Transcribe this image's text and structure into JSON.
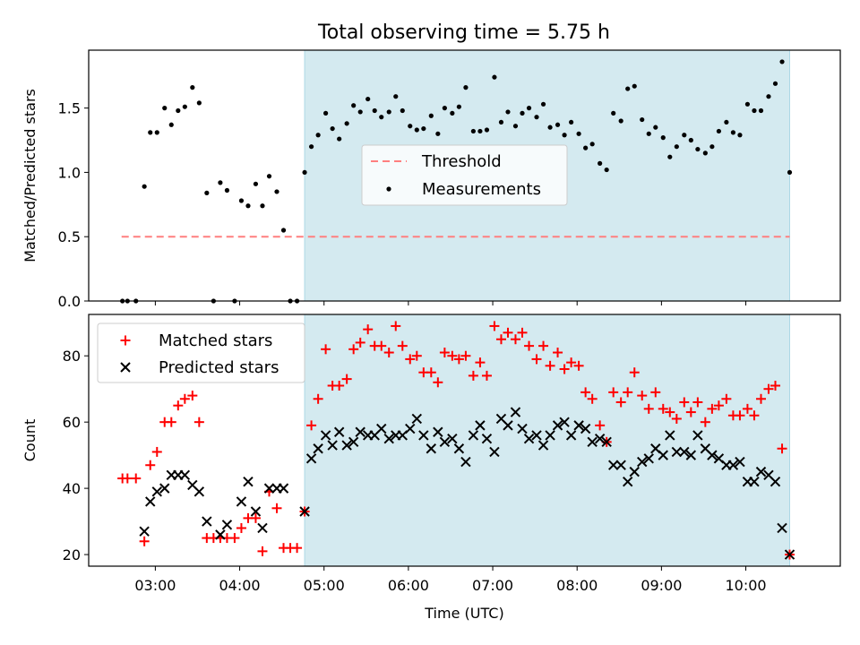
{
  "figure_title": "Total observing time = 5.75 h",
  "colors": {
    "observing_window": "#d4eaf0",
    "observing_edge": "#add8e6",
    "threshold": "#ff7f7f",
    "matched": "#ff0000",
    "predicted": "#000000"
  },
  "chart_data": [
    {
      "type": "scatter",
      "title": "Total observing time = 5.75 h",
      "xlabel": "",
      "ylabel": "Matched/Predicted stars",
      "x_unit": "hours (UTC)",
      "xlim": [
        2.21,
        11.12
      ],
      "ylim": [
        0.0,
        1.95
      ],
      "yticks": [
        0.0,
        0.5,
        1.0,
        1.5
      ],
      "ytick_labels": [
        "0.0",
        "0.5",
        "1.0",
        "1.5"
      ],
      "observing_window": [
        4.77,
        10.52
      ],
      "legend": {
        "placement": "center",
        "entries": [
          "Threshold",
          "Measurements"
        ]
      },
      "series": [
        {
          "name": "Threshold",
          "kind": "dashed-line",
          "x": [
            2.6,
            10.52
          ],
          "y": [
            0.5,
            0.5
          ]
        },
        {
          "name": "Measurements",
          "kind": "points",
          "x": [
            2.61,
            2.67,
            2.77,
            2.87,
            2.94,
            3.02,
            3.11,
            3.19,
            3.27,
            3.35,
            3.44,
            3.52,
            3.61,
            3.69,
            3.77,
            3.85,
            3.94,
            4.02,
            4.1,
            4.19,
            4.27,
            4.35,
            4.44,
            4.52,
            4.6,
            4.68,
            4.77,
            4.85,
            4.93,
            5.02,
            5.1,
            5.18,
            5.27,
            5.35,
            5.43,
            5.52,
            5.6,
            5.68,
            5.77,
            5.85,
            5.93,
            6.02,
            6.1,
            6.18,
            6.27,
            6.35,
            6.43,
            6.52,
            6.6,
            6.68,
            6.77,
            6.85,
            6.93,
            7.02,
            7.1,
            7.18,
            7.27,
            7.35,
            7.43,
            7.52,
            7.6,
            7.68,
            7.77,
            7.85,
            7.93,
            8.02,
            8.1,
            8.18,
            8.27,
            8.35,
            8.43,
            8.52,
            8.6,
            8.68,
            8.77,
            8.85,
            8.93,
            9.02,
            9.1,
            9.18,
            9.27,
            9.35,
            9.43,
            9.52,
            9.6,
            9.68,
            9.77,
            9.85,
            9.93,
            10.02,
            10.1,
            10.18,
            10.27,
            10.35,
            10.43,
            10.52
          ],
          "y": [
            0.0,
            0.0,
            0.0,
            0.89,
            1.31,
            1.31,
            1.5,
            1.37,
            1.48,
            1.51,
            1.66,
            1.54,
            0.84,
            0.0,
            0.92,
            0.86,
            0.0,
            0.78,
            0.74,
            0.91,
            0.74,
            0.97,
            0.85,
            0.55,
            0.0,
            0.0,
            1.0,
            1.2,
            1.29,
            1.46,
            1.34,
            1.26,
            1.38,
            1.52,
            1.47,
            1.57,
            1.48,
            1.43,
            1.47,
            1.59,
            1.48,
            1.36,
            1.33,
            1.34,
            1.44,
            1.3,
            1.5,
            1.46,
            1.51,
            1.66,
            1.32,
            1.32,
            1.33,
            1.74,
            1.39,
            1.47,
            1.36,
            1.46,
            1.5,
            1.43,
            1.53,
            1.35,
            1.37,
            1.29,
            1.39,
            1.3,
            1.19,
            1.22,
            1.07,
            1.02,
            1.46,
            1.4,
            1.65,
            1.67,
            1.41,
            1.3,
            1.35,
            1.27,
            1.12,
            1.2,
            1.29,
            1.25,
            1.18,
            1.15,
            1.2,
            1.32,
            1.39,
            1.31,
            1.29,
            1.53,
            1.48,
            1.48,
            1.59,
            1.69,
            1.86,
            1.0
          ]
        }
      ]
    },
    {
      "type": "scatter",
      "title": "",
      "xlabel": "Time (UTC)",
      "ylabel": "Count",
      "x_unit": "hours (UTC)",
      "xlim": [
        2.21,
        11.12
      ],
      "ylim": [
        16.5,
        92.5
      ],
      "xticks": [
        3,
        4,
        5,
        6,
        7,
        8,
        9,
        10
      ],
      "xtick_labels": [
        "03:00",
        "04:00",
        "05:00",
        "06:00",
        "07:00",
        "08:00",
        "09:00",
        "10:00"
      ],
      "yticks": [
        20,
        40,
        60,
        80
      ],
      "ytick_labels": [
        "20",
        "40",
        "60",
        "80"
      ],
      "observing_window": [
        4.77,
        10.52
      ],
      "legend": {
        "placement": "upper left",
        "entries": [
          "Matched stars",
          "Predicted stars"
        ]
      },
      "series": [
        {
          "name": "Matched stars",
          "marker": "plus",
          "x": [
            2.61,
            2.67,
            2.77,
            2.87,
            2.94,
            3.02,
            3.11,
            3.19,
            3.27,
            3.35,
            3.44,
            3.52,
            3.61,
            3.69,
            3.77,
            3.85,
            3.94,
            4.02,
            4.1,
            4.19,
            4.27,
            4.35,
            4.44,
            4.52,
            4.6,
            4.68,
            4.77,
            4.85,
            4.93,
            5.02,
            5.1,
            5.18,
            5.27,
            5.35,
            5.43,
            5.52,
            5.6,
            5.68,
            5.77,
            5.85,
            5.93,
            6.02,
            6.1,
            6.18,
            6.27,
            6.35,
            6.43,
            6.52,
            6.6,
            6.68,
            6.77,
            6.85,
            6.93,
            7.02,
            7.1,
            7.18,
            7.27,
            7.35,
            7.43,
            7.52,
            7.6,
            7.68,
            7.77,
            7.85,
            7.93,
            8.02,
            8.1,
            8.18,
            8.27,
            8.35,
            8.43,
            8.52,
            8.6,
            8.68,
            8.77,
            8.85,
            8.93,
            9.02,
            9.1,
            9.18,
            9.27,
            9.35,
            9.43,
            9.52,
            9.6,
            9.68,
            9.77,
            9.85,
            9.93,
            10.02,
            10.1,
            10.18,
            10.27,
            10.35,
            10.43,
            10.52
          ],
          "y": [
            43,
            43,
            43,
            24,
            47,
            51,
            60,
            60,
            65,
            67,
            68,
            60,
            25,
            25,
            25,
            25,
            25,
            28,
            31,
            31,
            21,
            39,
            34,
            22,
            22,
            22,
            33,
            59,
            67,
            82,
            71,
            71,
            73,
            82,
            84,
            88,
            83,
            83,
            81,
            89,
            83,
            79,
            80,
            75,
            75,
            72,
            81,
            80,
            79,
            80,
            74,
            78,
            74,
            89,
            85,
            87,
            85,
            87,
            83,
            79,
            83,
            77,
            81,
            76,
            78,
            77,
            69,
            67,
            59,
            54,
            69,
            66,
            69,
            75,
            68,
            64,
            69,
            64,
            63,
            61,
            66,
            63,
            66,
            60,
            64,
            65,
            67,
            62,
            62,
            64,
            62,
            67,
            70,
            71,
            52,
            20
          ]
        },
        {
          "name": "Predicted stars",
          "marker": "x",
          "x": [
            2.61,
            2.67,
            2.77,
            2.87,
            2.94,
            3.02,
            3.11,
            3.19,
            3.27,
            3.35,
            3.44,
            3.52,
            3.61,
            3.69,
            3.77,
            3.85,
            3.94,
            4.02,
            4.1,
            4.19,
            4.27,
            4.35,
            4.44,
            4.52,
            4.6,
            4.68,
            4.77,
            4.85,
            4.93,
            5.02,
            5.1,
            5.18,
            5.27,
            5.35,
            5.43,
            5.52,
            5.6,
            5.68,
            5.77,
            5.85,
            5.93,
            6.02,
            6.1,
            6.18,
            6.27,
            6.35,
            6.43,
            6.52,
            6.6,
            6.68,
            6.77,
            6.85,
            6.93,
            7.02,
            7.1,
            7.18,
            7.27,
            7.35,
            7.43,
            7.52,
            7.6,
            7.68,
            7.77,
            7.85,
            7.93,
            8.02,
            8.1,
            8.18,
            8.27,
            8.35,
            8.43,
            8.52,
            8.6,
            8.68,
            8.77,
            8.85,
            8.93,
            9.02,
            9.1,
            9.18,
            9.27,
            9.35,
            9.43,
            9.52,
            9.6,
            9.68,
            9.77,
            9.85,
            9.93,
            10.02,
            10.1,
            10.18,
            10.27,
            10.35,
            10.43,
            10.52
          ],
          "y": [
            null,
            null,
            null,
            27,
            36,
            39,
            40,
            44,
            44,
            44,
            41,
            39,
            30,
            null,
            26,
            29,
            null,
            36,
            42,
            33,
            28,
            40,
            40,
            40,
            null,
            null,
            33,
            49,
            52,
            56,
            53,
            57,
            53,
            54,
            57,
            56,
            56,
            58,
            55,
            56,
            56,
            58,
            61,
            56,
            52,
            57,
            54,
            55,
            52,
            48,
            56,
            59,
            55,
            51,
            61,
            59,
            63,
            58,
            55,
            56,
            53,
            56,
            59,
            60,
            56,
            59,
            58,
            54,
            55,
            54,
            47,
            47,
            42,
            45,
            48,
            49,
            52,
            50,
            56,
            51,
            51,
            50,
            56,
            52,
            50,
            49,
            47,
            47,
            48,
            42,
            42,
            45,
            44,
            42,
            28,
            20
          ]
        }
      ]
    }
  ]
}
